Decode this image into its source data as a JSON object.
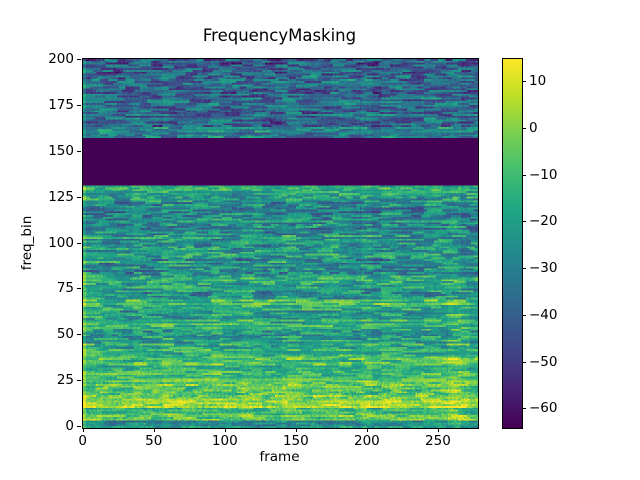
{
  "chart_data": {
    "type": "heatmap",
    "title": "FrequencyMasking",
    "xlabel": "frame",
    "ylabel": "freq_bin",
    "x_ticks": [
      0,
      50,
      100,
      150,
      200,
      250
    ],
    "x_tick_labels": [
      "0",
      "50",
      "100",
      "150",
      "200",
      "250"
    ],
    "y_ticks": [
      0,
      25,
      50,
      75,
      100,
      125,
      150,
      175,
      200
    ],
    "y_tick_labels": [
      "0",
      "25",
      "50",
      "75",
      "100",
      "125",
      "150",
      "175",
      "200"
    ],
    "xlim": [
      -0.5,
      277.5
    ],
    "ylim": [
      -0.5,
      200.5
    ],
    "n_frames": 278,
    "n_bins": 201,
    "vmin": -64,
    "vmax": 15,
    "colorbar_ticks": [
      10,
      0,
      -10,
      -20,
      -30,
      -40,
      -50,
      -60
    ],
    "colorbar_tick_labels": [
      "10",
      "0",
      "−10",
      "−20",
      "−30",
      "−40",
      "−50",
      "−60"
    ],
    "colormap": {
      "name": "viridis",
      "anchors": [
        "#440154",
        "#482475",
        "#414487",
        "#355f8d",
        "#2a788e",
        "#21918c",
        "#22a884",
        "#44bf70",
        "#7ad151",
        "#bddf26",
        "#fde725"
      ]
    },
    "mask": {
      "axis": "frequency",
      "start_bin": 132,
      "end_bin": 157,
      "fill_value": -64
    },
    "texture": {
      "seed": 42,
      "row_jitter": 10,
      "fine_noise": 9,
      "fine_noise_low_bins": 13,
      "envelope": 5,
      "row_segments": [
        [
          0,
          3,
          -26,
          10
        ],
        [
          4,
          7,
          -4,
          10
        ],
        [
          8,
          10,
          -14,
          10
        ],
        [
          11,
          13,
          2,
          8
        ],
        [
          14,
          17,
          0,
          10
        ],
        [
          18,
          22,
          -8,
          12
        ],
        [
          23,
          27,
          -5,
          10
        ],
        [
          28,
          33,
          -14,
          12
        ],
        [
          34,
          38,
          -9,
          12
        ],
        [
          39,
          45,
          -18,
          13
        ],
        [
          46,
          52,
          -22,
          14
        ],
        [
          53,
          58,
          -16,
          13
        ],
        [
          59,
          64,
          -22,
          14
        ],
        [
          65,
          69,
          -13,
          13
        ],
        [
          70,
          78,
          -24,
          15
        ],
        [
          79,
          82,
          -17,
          13
        ],
        [
          83,
          95,
          -27,
          16
        ],
        [
          96,
          104,
          -25,
          16
        ],
        [
          105,
          118,
          -29,
          16
        ],
        [
          119,
          125,
          -27,
          16
        ],
        [
          126,
          127,
          -22,
          14
        ],
        [
          128,
          131,
          -14,
          12
        ],
        [
          132,
          157,
          -64,
          0
        ],
        [
          158,
          163,
          -30,
          15
        ],
        [
          164,
          178,
          -39,
          16
        ],
        [
          179,
          188,
          -37,
          16
        ],
        [
          189,
          200,
          -39,
          17
        ]
      ]
    }
  }
}
